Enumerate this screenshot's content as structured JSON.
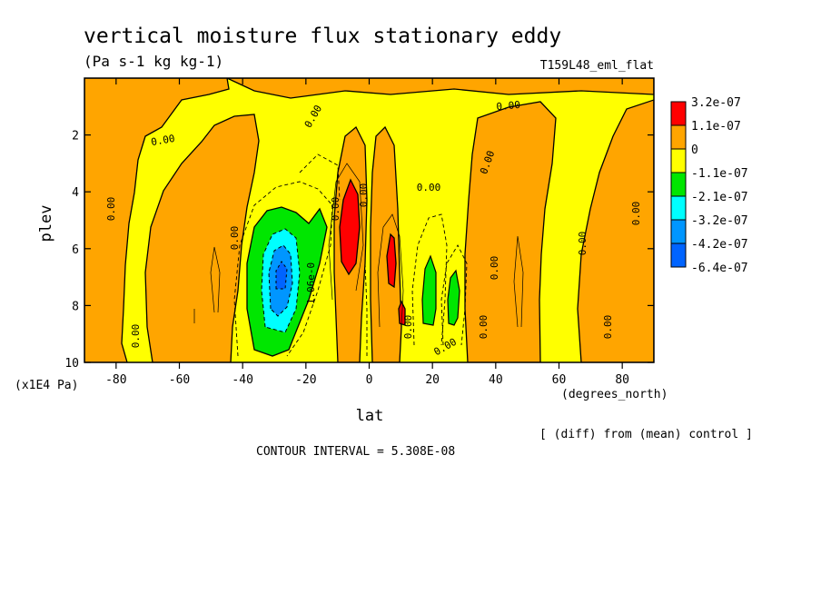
{
  "chart_data": {
    "type": "heatmap",
    "title": "vertical moisture flux stationary eddy",
    "subtitle": "(Pa s-1 kg kg-1)",
    "experiment": "T159L48_eml_flat",
    "xlabel": "lat",
    "x_units": "(degrees_north)",
    "ylabel": "plev",
    "y_units": "(x1E4 Pa)",
    "xlim": [
      -90,
      90
    ],
    "ylim": [
      10,
      0
    ],
    "x_ticks": [
      -80,
      -60,
      -40,
      -20,
      0,
      20,
      40,
      60,
      80
    ],
    "y_ticks": [
      2,
      4,
      6,
      8,
      10
    ],
    "diff_note": "[ (diff) from (mean) control ]",
    "contour_interval": "CONTOUR INTERVAL = 5.308E-08",
    "legend": {
      "position": "right",
      "levels": [
        {
          "label": "3.2e-07",
          "color": "#ff0000"
        },
        {
          "label": "1.1e-07",
          "color": "#ffa500"
        },
        {
          "label": "0",
          "color": "#ffa500"
        },
        {
          "label": "-1.1e-07",
          "color": "#ffff00"
        },
        {
          "label": "-2.1e-07",
          "color": "#00e600"
        },
        {
          "label": "-3.2e-07",
          "color": "#00ffff"
        },
        {
          "label": "-4.2e-07",
          "color": "#0096ff"
        },
        {
          "label": "-6.4e-07",
          "color": "#0064ff"
        }
      ]
    },
    "field_regions": [
      {
        "lat": [
          -90,
          -72
        ],
        "plev": [
          0.6,
          10
        ],
        "sign": "positive"
      },
      {
        "lat": [
          -65,
          -42
        ],
        "plev": [
          1.6,
          10
        ],
        "sign": "positive"
      },
      {
        "lat": [
          -10,
          -2
        ],
        "plev": [
          1.6,
          9.2
        ],
        "sign": "positive"
      },
      {
        "lat": [
          4,
          13
        ],
        "plev": [
          1.6,
          9.6
        ],
        "sign": "positive"
      },
      {
        "lat": [
          35,
          59
        ],
        "plev": [
          0.6,
          10
        ],
        "sign": "positive"
      },
      {
        "lat": [
          67,
          88
        ],
        "plev": [
          1.0,
          10
        ],
        "sign": "positive"
      },
      {
        "lat": [
          -37,
          -18
        ],
        "plev": [
          4.5,
          9.6
        ],
        "sign": "negative",
        "min": -6.4e-07
      },
      {
        "lat": [
          -7,
          -2
        ],
        "plev": [
          3.6,
          7.0
        ],
        "sign": "positive",
        "max": 3.2e-07
      },
      {
        "lat": [
          6,
          9
        ],
        "plev": [
          5.4,
          7.6
        ],
        "sign": "positive",
        "max": 3.2e-07
      },
      {
        "lat": [
          9,
          11
        ],
        "plev": [
          7.8,
          8.8
        ],
        "sign": "positive",
        "max": 3.2e-07
      },
      {
        "lat": [
          18,
          21
        ],
        "plev": [
          6.0,
          8.6
        ],
        "sign": "negative"
      },
      {
        "lat": [
          25,
          28
        ],
        "plev": [
          6.6,
          8.6
        ],
        "sign": "negative"
      }
    ],
    "contour_labels": [
      "0.00",
      "0.00",
      "0.00",
      "0.00",
      "0.00",
      "0.00",
      "0.00",
      "0.00",
      "0.00",
      "0.00",
      "0.00",
      "0.00",
      "0.00",
      "0.00",
      "0.00",
      "0.00",
      "1.06e-0",
      "0.00"
    ]
  }
}
